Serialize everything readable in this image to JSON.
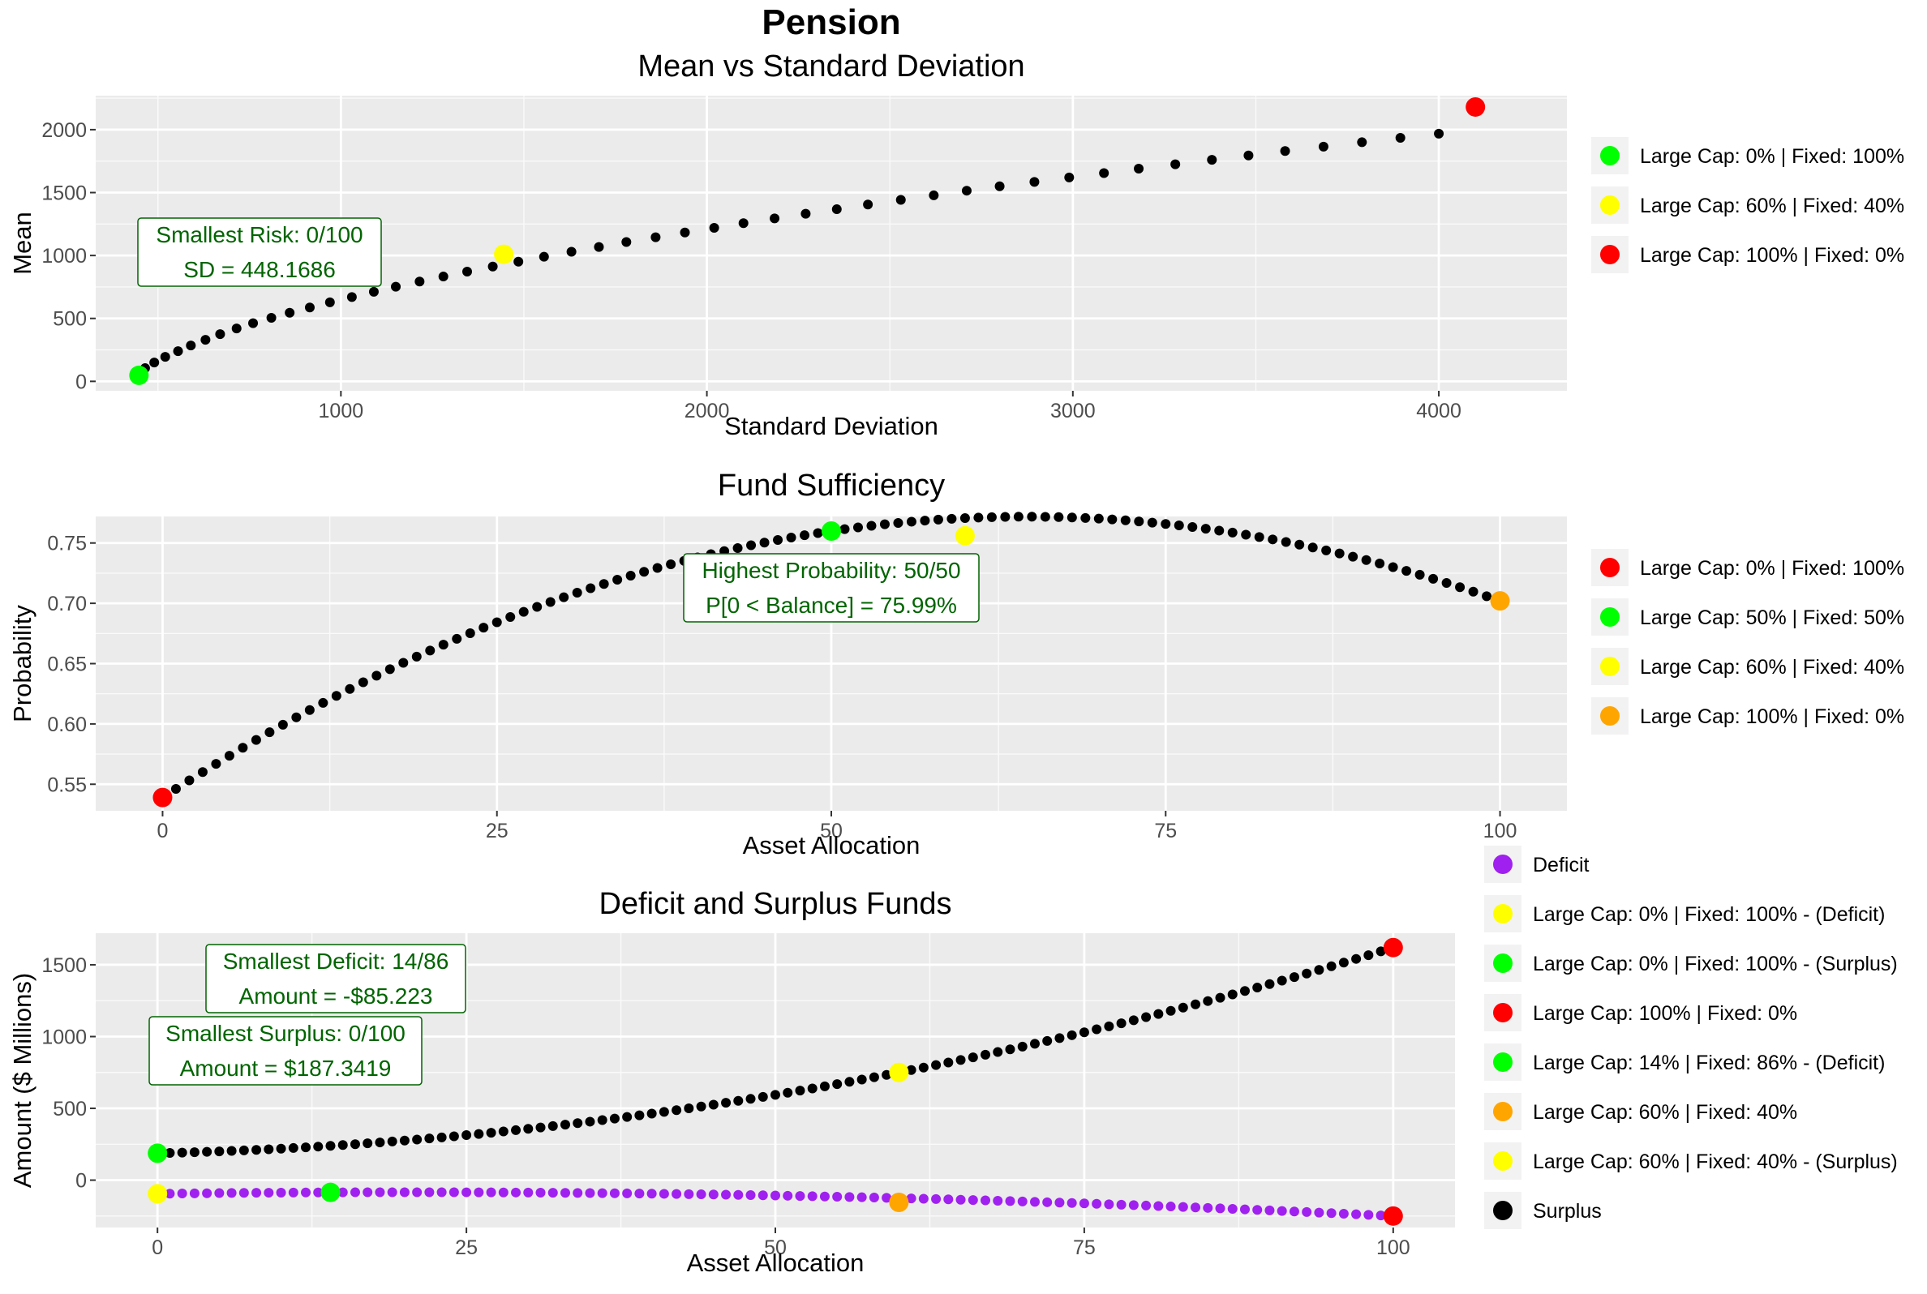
{
  "main_title": "Pension",
  "chart_data": [
    {
      "type": "scatter",
      "title": "Mean vs Standard Deviation",
      "xlabel": "Standard Deviation",
      "ylabel": "Mean",
      "xlim": [
        330,
        4350
      ],
      "ylim": [
        -75,
        2270
      ],
      "x_ticks": [
        1000,
        2000,
        3000,
        4000
      ],
      "x_tick_labels": [
        "1000",
        "2000",
        "3000",
        "4000"
      ],
      "y_ticks": [
        0,
        500,
        1000,
        1500,
        2000
      ],
      "y_tick_labels": [
        "0",
        "500",
        "1000",
        "1500",
        "2000"
      ],
      "grid": true,
      "legend_position": "right",
      "series": [
        {
          "color": "#000000",
          "x": [
            448,
            465,
            490,
            520,
            555,
            590,
            630,
            670,
            715,
            760,
            810,
            860,
            915,
            970,
            1030,
            1090,
            1150,
            1215,
            1280,
            1345,
            1415,
            1485,
            1555,
            1630,
            1705,
            1780,
            1860,
            1940,
            2020,
            2100,
            2185,
            2270,
            2355,
            2440,
            2530,
            2620,
            2710,
            2800,
            2895,
            2990,
            3085,
            3180,
            3280,
            3380,
            3480,
            3580,
            3685,
            3790,
            3895,
            4000
          ],
          "y": [
            60,
            105,
            150,
            195,
            240,
            285,
            330,
            375,
            420,
            462,
            505,
            545,
            587,
            628,
            670,
            712,
            752,
            793,
            833,
            872,
            912,
            951,
            990,
            1030,
            1068,
            1107,
            1145,
            1183,
            1220,
            1257,
            1295,
            1332,
            1368,
            1405,
            1442,
            1478,
            1515,
            1550,
            1585,
            1620,
            1655,
            1690,
            1725,
            1760,
            1795,
            1830,
            1865,
            1900,
            1935,
            1968
          ]
        }
      ],
      "highlights": [
        {
          "label": "Large Cap: 0% | Fixed: 100%",
          "color": "#00ff00",
          "x": 448.17,
          "y": 48
        },
        {
          "label": "Large Cap: 60% | Fixed: 40%",
          "color": "#ffff00",
          "x": 1445,
          "y": 1010
        },
        {
          "label": "Large Cap: 100% | Fixed: 0%",
          "color": "#ff0000",
          "x": 4100,
          "y": 2180
        }
      ],
      "annotations": [
        {
          "lines": [
            "Smallest Risk: 0/100",
            "SD = 448.1686"
          ]
        }
      ]
    },
    {
      "type": "scatter",
      "title": "Fund Sufficiency",
      "xlabel": "Asset Allocation",
      "ylabel": "Probability",
      "xlim": [
        -5,
        105
      ],
      "ylim": [
        0.528,
        0.772
      ],
      "x_ticks": [
        0,
        25,
        50,
        75,
        100
      ],
      "x_tick_labels": [
        "0",
        "25",
        "50",
        "75",
        "100"
      ],
      "y_ticks": [
        0.55,
        0.6,
        0.65,
        0.7,
        0.75
      ],
      "y_tick_labels": [
        "0.55",
        "0.60",
        "0.65",
        "0.70",
        "0.75"
      ],
      "grid": true,
      "legend_position": "right",
      "series": [
        {
          "color": "#000000",
          "curve": "quadratic",
          "points": [
            [
              0,
              0.539
            ],
            [
              50,
              0.7599
            ],
            [
              100,
              0.702
            ]
          ],
          "x_start": 0,
          "x_end": 100,
          "x_step": 1
        }
      ],
      "highlights": [
        {
          "label": "Large Cap: 0% | Fixed: 100%",
          "color": "#ff0000",
          "x": 0,
          "y": 0.539
        },
        {
          "label": "Large Cap: 50% | Fixed: 50%",
          "color": "#00ff00",
          "x": 50,
          "y": 0.7599
        },
        {
          "label": "Large Cap: 60% | Fixed: 40%",
          "color": "#ffff00",
          "x": 60,
          "y": 0.756
        },
        {
          "label": "Large Cap: 100% | Fixed: 0%",
          "color": "#ffa500",
          "x": 100,
          "y": 0.702
        }
      ],
      "annotations": [
        {
          "lines": [
            "Highest Probability: 50/50",
            "P[0 < Balance] = 75.99%"
          ]
        }
      ]
    },
    {
      "type": "scatter",
      "title": "Deficit and Surplus Funds",
      "xlabel": "Asset Allocation",
      "ylabel": "Amount ($ Millions)",
      "xlim": [
        -5,
        105
      ],
      "ylim": [
        -330,
        1720
      ],
      "x_ticks": [
        0,
        25,
        50,
        75,
        100
      ],
      "x_tick_labels": [
        "0",
        "25",
        "50",
        "75",
        "100"
      ],
      "y_ticks": [
        0,
        500,
        1000,
        1500
      ],
      "y_tick_labels": [
        "0",
        "500",
        "1000",
        "1500"
      ],
      "grid": true,
      "legend_position": "right",
      "series": [
        {
          "name": "Surplus",
          "color": "#000000",
          "curve": "quadratic",
          "points": [
            [
              0,
              187.34
            ],
            [
              60,
              750
            ],
            [
              100,
              1620
            ]
          ],
          "x_start": 0,
          "x_end": 100,
          "x_step": 1
        },
        {
          "name": "Deficit",
          "color": "#a020f0",
          "curve": "quadratic",
          "points": [
            [
              0,
              -95
            ],
            [
              14,
              -85.22
            ],
            [
              100,
              -250
            ]
          ],
          "x_start": 0,
          "x_end": 100,
          "x_step": 1
        }
      ],
      "highlights": [
        {
          "label": "Large Cap: 0% | Fixed: 100% - (Deficit)",
          "color": "#ffff00",
          "x": 0,
          "y": -95
        },
        {
          "label": "Large Cap: 0% | Fixed: 100% - (Surplus)",
          "color": "#00ff00",
          "x": 0,
          "y": 187.34
        },
        {
          "label": "Large Cap: 100% | Fixed: 0%",
          "color": "#ff0000",
          "x": 100,
          "y": 1620
        },
        {
          "label": "Large Cap: 14% | Fixed: 86% - (Deficit)",
          "color": "#00ff00",
          "x": 14,
          "y": -85.22
        },
        {
          "label": "Large Cap: 60% | Fixed: 40%",
          "color": "#ffa500",
          "x": 60,
          "y": -155
        },
        {
          "label": "Large Cap: 60% | Fixed: 40% - (Surplus)",
          "color": "#ffff00",
          "x": 60,
          "y": 750
        },
        {
          "label": "",
          "color": "#ff0000",
          "x": 100,
          "y": -250
        }
      ],
      "legend": [
        {
          "label": "Deficit",
          "color": "#a020f0"
        },
        {
          "label": "Large Cap: 0% | Fixed: 100% - (Deficit)",
          "color": "#ffff00"
        },
        {
          "label": "Large Cap: 0% | Fixed: 100% - (Surplus)",
          "color": "#00ff00"
        },
        {
          "label": "Large Cap: 100% | Fixed: 0%",
          "color": "#ff0000"
        },
        {
          "label": "Large Cap: 14% | Fixed: 86% - (Deficit)",
          "color": "#00ff00"
        },
        {
          "label": "Large Cap: 60% | Fixed: 40%",
          "color": "#ffa500"
        },
        {
          "label": "Large Cap: 60% | Fixed: 40% - (Surplus)",
          "color": "#ffff00"
        },
        {
          "label": "Surplus",
          "color": "#000000"
        }
      ],
      "annotations": [
        {
          "lines": [
            "Smallest Deficit: 14/86",
            "Amount = -$85.223"
          ]
        },
        {
          "lines": [
            "Smallest Surplus: 0/100",
            "Amount = $187.3419"
          ]
        }
      ]
    }
  ]
}
